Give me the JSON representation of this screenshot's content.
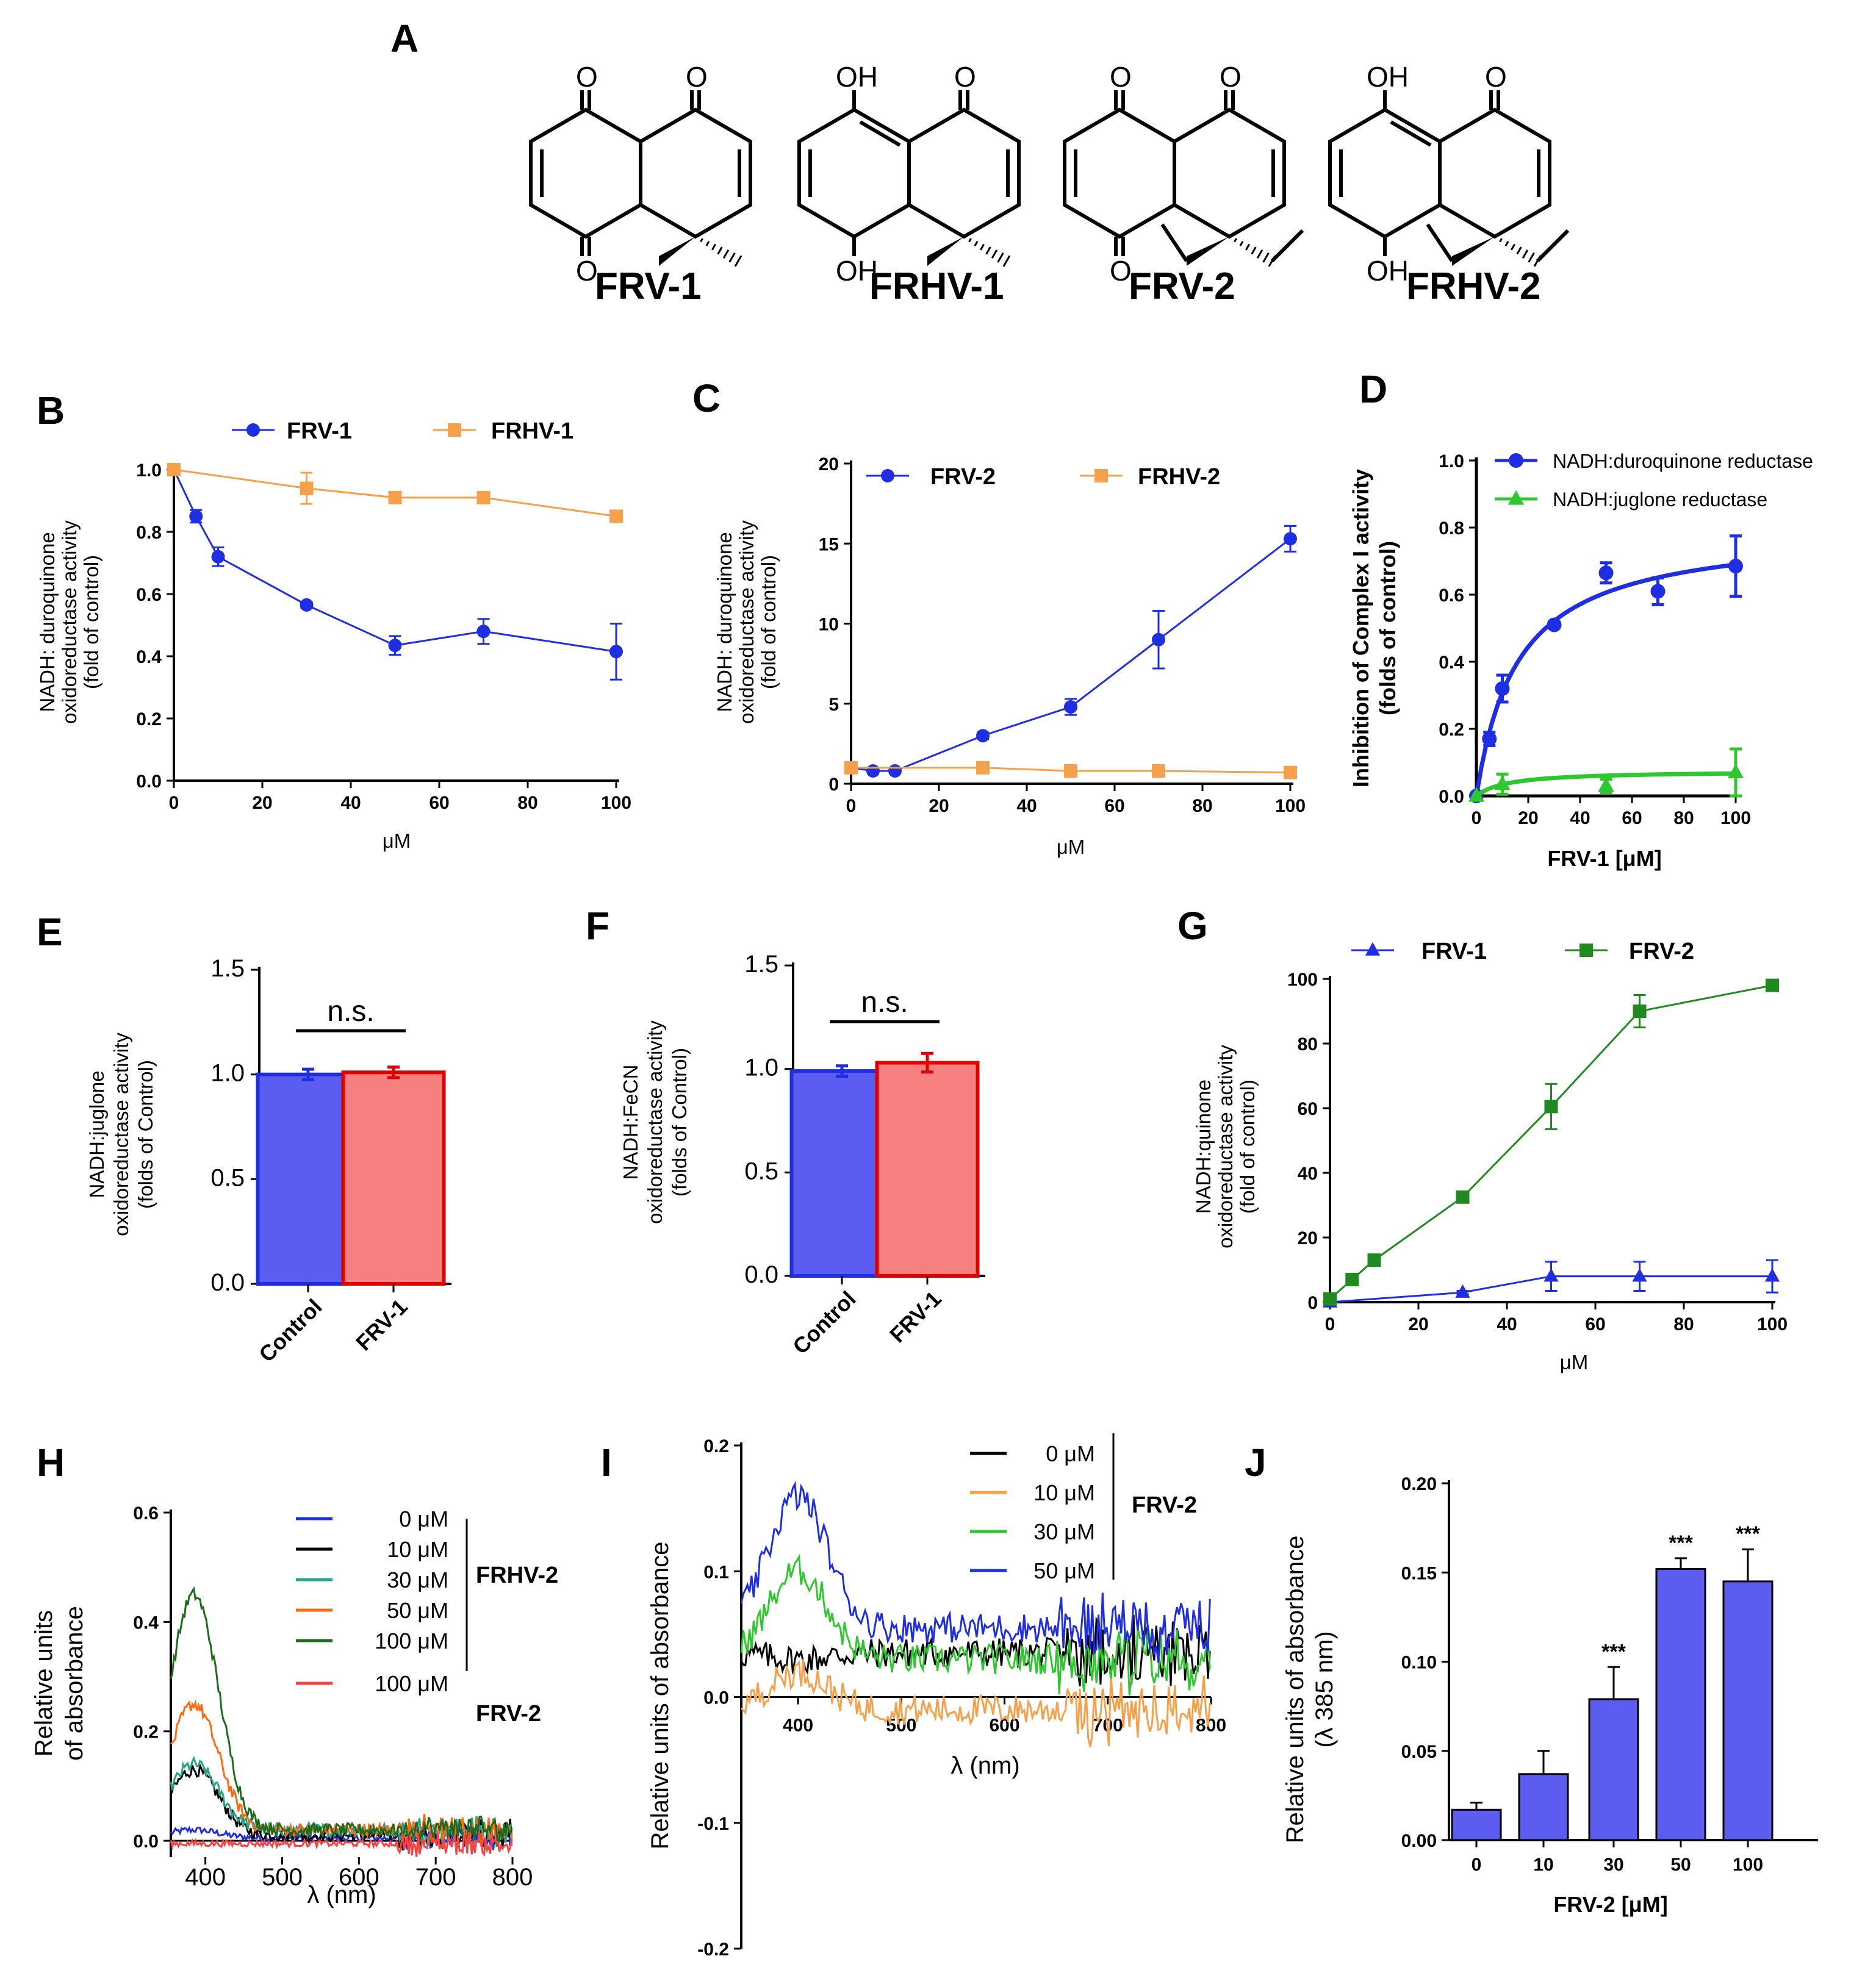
{
  "panel_labels": [
    "A",
    "B",
    "C",
    "D",
    "E",
    "F",
    "G",
    "H",
    "I",
    "J"
  ],
  "colors": {
    "blue": "#1f2ee0",
    "orange": "#f5a04a",
    "green": "#1f8a1f",
    "lightgreen": "#2ec82e",
    "barblue": "#5a5cf2",
    "barred": "#f48080",
    "red": "#e00000",
    "black": "#000000",
    "teal": "#2aa387",
    "dkorange": "#ff6a10",
    "dkgreen": "#1d6b1d",
    "brightred": "#ff4040",
    "barJ": "#5c5cf0"
  },
  "compounds": {
    "names": [
      "FRV-1",
      "FRHV-1",
      "FRV-2",
      "FRHV-2"
    ],
    "atoms": {
      "O": "O",
      "OH": "OH"
    }
  },
  "chart_data": [
    {
      "id": "B",
      "type": "line",
      "x": [
        0,
        5,
        10,
        30,
        50,
        70,
        100
      ],
      "series": [
        {
          "name": "FRV-1",
          "color": "#1f2ee0",
          "marker": "circle",
          "values": [
            1.0,
            0.85,
            0.72,
            0.565,
            0.435,
            0.48,
            0.415
          ],
          "err": [
            0,
            0.02,
            0.03,
            0.01,
            0.03,
            0.04,
            0.09
          ]
        },
        {
          "name": "FRHV-1",
          "color": "#f5a04a",
          "marker": "square",
          "values": [
            1.0,
            null,
            null,
            0.94,
            0.91,
            0.91,
            0.85
          ],
          "err": [
            0,
            null,
            null,
            0.05,
            0.015,
            0.015,
            0.01
          ]
        }
      ],
      "xlim": [
        0,
        100
      ],
      "ylim": [
        0,
        1.0
      ],
      "xticks": [
        "0",
        "20",
        "40",
        "60",
        "80",
        "100"
      ],
      "yticks": [
        "0.0",
        "0.2",
        "0.4",
        "0.6",
        "0.8",
        "1.0"
      ],
      "xlabel": "μM",
      "ylabel": [
        "NADH: duroquinone",
        "oxidoreductase activity",
        "(fold of control)"
      ]
    },
    {
      "id": "C",
      "type": "line",
      "x": [
        0,
        5,
        10,
        30,
        50,
        70,
        100
      ],
      "series": [
        {
          "name": "FRV-2",
          "color": "#1f2ee0",
          "marker": "circle",
          "values": [
            1.0,
            0.8,
            0.8,
            3.0,
            4.8,
            9.0,
            15.3
          ],
          "err": [
            0,
            0.1,
            0.1,
            0.2,
            0.5,
            1.8,
            0.8
          ]
        },
        {
          "name": "FRHV-2",
          "color": "#f5a04a",
          "marker": "square",
          "values": [
            1.0,
            null,
            null,
            1.0,
            0.8,
            0.8,
            0.7
          ],
          "err": [
            0,
            null,
            null,
            0.05,
            0.05,
            0.05,
            0.05
          ]
        }
      ],
      "xlim": [
        0,
        100
      ],
      "ylim": [
        0,
        20
      ],
      "xticks": [
        "0",
        "20",
        "40",
        "60",
        "80",
        "100"
      ],
      "yticks": [
        "0",
        "5",
        "10",
        "15",
        "20"
      ],
      "xlabel": "μM",
      "ylabel": [
        "NADH: duroquinone",
        "oxidoreductase activity",
        "(fold of control)"
      ]
    },
    {
      "id": "D",
      "type": "scatter",
      "x": [
        0,
        5,
        10,
        30,
        50,
        70,
        100
      ],
      "series": [
        {
          "name": "NADH:duroquinone reductase",
          "color": "#1f2ee0",
          "marker": "circle",
          "values": [
            0,
            0.17,
            0.32,
            0.51,
            0.665,
            0.61,
            0.685
          ],
          "err": [
            0,
            0.02,
            0.04,
            0.01,
            0.03,
            0.04,
            0.09
          ],
          "fit": {
            "vmax": 0.8,
            "k": 16
          }
        },
        {
          "name": "NADH:juglone reductase",
          "color": "#2ec82e",
          "marker": "triangle",
          "values": [
            0,
            null,
            0.035,
            null,
            0.03,
            null,
            0.07
          ],
          "err": [
            0,
            null,
            0.03,
            null,
            0.02,
            null,
            0.07
          ],
          "fit": {
            "vmax": 0.075,
            "k": 12
          }
        }
      ],
      "xlim": [
        0,
        100
      ],
      "ylim": [
        0,
        1.0
      ],
      "xticks": [
        "0",
        "20",
        "40",
        "60",
        "80",
        "100"
      ],
      "yticks": [
        "0.0",
        "0.2",
        "0.4",
        "0.6",
        "0.8",
        "1.0"
      ],
      "xlabel": "FRV-1 [μM]",
      "ylabel": [
        "Inhibition of Complex I activity",
        "(folds of control)"
      ]
    },
    {
      "id": "E",
      "type": "bar",
      "categories": [
        "Control",
        "FRV-1"
      ],
      "values": [
        1.0,
        1.01
      ],
      "err": [
        0.025,
        0.025
      ],
      "colors": [
        "#5a5cf2",
        "#f48080"
      ],
      "edges": [
        "#1f2ee0",
        "#e00000"
      ],
      "ylim": [
        0,
        1.5
      ],
      "yticks": [
        "0.0",
        "0.5",
        "1.0",
        "1.5"
      ],
      "annotation": "n.s.",
      "ylabel": [
        "NADH:juglone",
        "oxidoreductase activity",
        "(folds of Control)"
      ]
    },
    {
      "id": "F",
      "type": "bar",
      "categories": [
        "Control",
        "FRV-1"
      ],
      "values": [
        0.99,
        1.03
      ],
      "err": [
        0.025,
        0.045
      ],
      "colors": [
        "#5a5cf2",
        "#f48080"
      ],
      "edges": [
        "#1f2ee0",
        "#e00000"
      ],
      "ylim": [
        0,
        1.5
      ],
      "yticks": [
        "0.0",
        "0.5",
        "1.0",
        "1.5"
      ],
      "annotation": "n.s.",
      "ylabel": [
        "NADH:FeCN",
        "oxidoreductase activity",
        "(folds of Control)"
      ]
    },
    {
      "id": "G",
      "type": "line",
      "x": [
        0,
        5,
        10,
        30,
        50,
        70,
        100
      ],
      "series": [
        {
          "name": "FRV-1",
          "color": "#1f2ee0",
          "marker": "triangle",
          "values": [
            0,
            null,
            null,
            3,
            8,
            8,
            8
          ],
          "err": [
            0,
            null,
            null,
            0.5,
            4.5,
            4.5,
            5
          ]
        },
        {
          "name": "FRV-2",
          "color": "#1f8a1f",
          "marker": "square",
          "values": [
            1,
            7,
            13,
            32.5,
            60.5,
            90,
            98
          ],
          "err": [
            0,
            1,
            1,
            1,
            7,
            5,
            1
          ]
        }
      ],
      "xlim": [
        0,
        100
      ],
      "ylim": [
        0,
        100
      ],
      "xticks": [
        "0",
        "20",
        "40",
        "60",
        "80",
        "100"
      ],
      "yticks": [
        "0",
        "20",
        "40",
        "60",
        "80",
        "100"
      ],
      "xlabel": "μM",
      "ylabel": [
        "NADH:quinone",
        "oxidoreductase activity",
        "(fold of control)"
      ]
    },
    {
      "id": "H",
      "type": "line",
      "xlim": [
        355,
        800
      ],
      "ylim": [
        -0.03,
        0.6
      ],
      "xticks": [
        "400",
        "500",
        "600",
        "700",
        "800"
      ],
      "yticks": [
        "0.0",
        "0.2",
        "0.4",
        "0.6"
      ],
      "xlabel": "λ (nm)",
      "ylabel": [
        "Relative units",
        "of absorbance"
      ],
      "series": [
        {
          "name": "0 μM",
          "group": "FRHV-2",
          "color": "#1f2ee0",
          "peak": 0.02,
          "base": 0.005
        },
        {
          "name": "10 μM",
          "group": "FRHV-2",
          "color": "#000000",
          "peak": 0.13,
          "base": 0.01
        },
        {
          "name": "30 μM",
          "group": "FRHV-2",
          "color": "#2aa387",
          "peak": 0.14,
          "base": 0.02
        },
        {
          "name": "50 μM",
          "group": "FRHV-2",
          "color": "#ff6a10",
          "peak": 0.25,
          "base": 0.02
        },
        {
          "name": "100 μM",
          "group": "FRHV-2",
          "color": "#1d6b1d",
          "peak": 0.45,
          "base": 0.02
        },
        {
          "name": "100 μM",
          "group": "FRV-2",
          "color": "#ff4040",
          "peak": -0.005,
          "base": -0.005
        }
      ],
      "groups": [
        "FRHV-2",
        "FRV-2"
      ]
    },
    {
      "id": "I",
      "type": "line",
      "xlim": [
        345,
        800
      ],
      "ylim": [
        -0.2,
        0.2
      ],
      "xticks": [
        "400",
        "500",
        "600",
        "700",
        "800"
      ],
      "yticks": [
        "-0.2",
        "-0.1",
        "0.0",
        "0.1",
        "0.2"
      ],
      "xlabel": "λ (nm)",
      "ylabel": [
        "Relative units of absorbance"
      ],
      "series": [
        {
          "name": "0 μM",
          "color": "#000000",
          "peak": 0.03,
          "base": 0.035
        },
        {
          "name": "10 μM",
          "color": "#f5a04a",
          "peak": 0.02,
          "base": -0.01
        },
        {
          "name": "30 μM",
          "color": "#2ec82e",
          "peak": 0.1,
          "base": 0.03
        },
        {
          "name": "50 μM",
          "color": "#1f2ee0",
          "peak": 0.16,
          "base": 0.055
        }
      ],
      "group": "FRV-2"
    },
    {
      "id": "J",
      "type": "bar",
      "categories": [
        "0",
        "10",
        "30",
        "50",
        "100"
      ],
      "values": [
        0.017,
        0.037,
        0.079,
        0.152,
        0.145
      ],
      "err": [
        0.004,
        0.013,
        0.018,
        0.006,
        0.018
      ],
      "stars": [
        "",
        "",
        "***",
        "***",
        "***"
      ],
      "color": "#5c5cf0",
      "ylim": [
        0,
        0.2
      ],
      "yticks": [
        "0.00",
        "0.05",
        "0.10",
        "0.15",
        "0.20"
      ],
      "xlabel": "FRV-2 [μM]",
      "ylabel": [
        "Relative units of absorbance",
        "(λ 385 nm)"
      ]
    }
  ]
}
